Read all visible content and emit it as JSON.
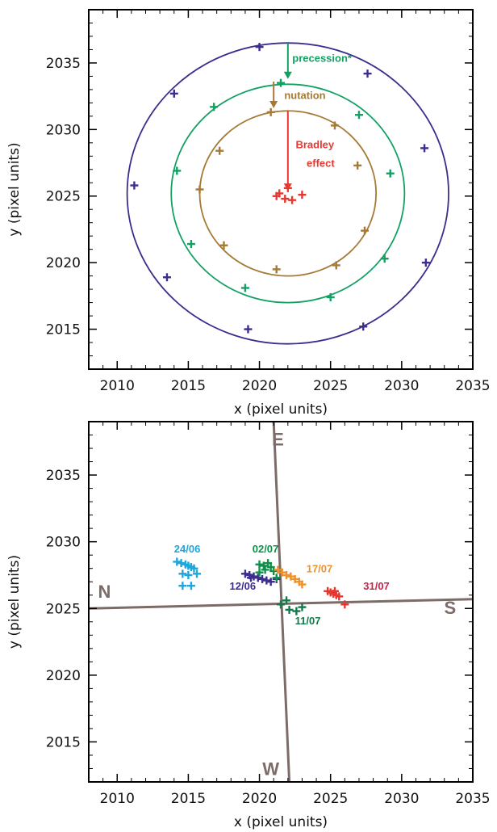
{
  "chart_data": [
    {
      "type": "scatter",
      "xlabel": "x (pixel units)",
      "ylabel": "y (pixel units)",
      "xlim": [
        2008,
        2035
      ],
      "ylim": [
        2012,
        2039
      ],
      "xticks": [
        "2010",
        "2015",
        "2020",
        "2025",
        "2030",
        "2035"
      ],
      "yticks": [
        "2015",
        "2020",
        "2025",
        "2030",
        "2035"
      ],
      "circles": [
        {
          "color": "#3a2e8e",
          "cx": 2022,
          "cy": 2025.2,
          "r": 11.3
        },
        {
          "color": "#12a063",
          "cx": 2022,
          "cy": 2025.2,
          "r": 8.2
        },
        {
          "color": "#a57a35",
          "cx": 2022,
          "cy": 2025.2,
          "r": 6.2
        }
      ],
      "annotations": [
        {
          "text": "precession*",
          "color": "#12a063",
          "x": 2024.4,
          "y": 2035.1
        },
        {
          "text": "nutation",
          "color": "#a57a35",
          "x": 2023.2,
          "y": 2032.3
        },
        {
          "text": "Bradley",
          "color": "#e8372f",
          "x": 2023.9,
          "y": 2028.6
        },
        {
          "text": "effect",
          "color": "#e8372f",
          "x": 2024.3,
          "y": 2027.2
        }
      ],
      "arrows": [
        {
          "color": "#12a063",
          "x": 2022,
          "y_from": 2036.5,
          "y_to": 2033.8
        },
        {
          "color": "#a57a35",
          "x": 2021,
          "y_from": 2033.6,
          "y_to": 2031.6
        },
        {
          "color": "#e8372f",
          "x": 2022,
          "y_from": 2031.4,
          "y_to": 2025.4
        }
      ],
      "series": [
        {
          "color": "#3a2e8e",
          "points": [
            [
              2020,
              2036.2
            ],
            [
              2027.6,
              2034.2
            ],
            [
              2014,
              2032.7
            ],
            [
              2031.6,
              2028.6
            ],
            [
              2011.2,
              2025.8
            ],
            [
              2031.7,
              2020
            ],
            [
              2013.5,
              2018.9
            ],
            [
              2019.2,
              2015
            ],
            [
              2027.3,
              2015.2
            ]
          ]
        },
        {
          "color": "#12a063",
          "points": [
            [
              2021.5,
              2033.5
            ],
            [
              2016.8,
              2031.7
            ],
            [
              2027,
              2031.1
            ],
            [
              2014.2,
              2026.9
            ],
            [
              2029.2,
              2026.7
            ],
            [
              2015.2,
              2021.4
            ],
            [
              2028.8,
              2020.3
            ],
            [
              2019,
              2018.1
            ],
            [
              2025,
              2017.4
            ]
          ]
        },
        {
          "color": "#a57a35",
          "points": [
            [
              2020.8,
              2031.3
            ],
            [
              2025.3,
              2030.3
            ],
            [
              2017.2,
              2028.4
            ],
            [
              2026.9,
              2027.3
            ],
            [
              2015.8,
              2025.5
            ],
            [
              2027.4,
              2022.4
            ],
            [
              2017.5,
              2021.3
            ],
            [
              2025.4,
              2019.8
            ],
            [
              2021.2,
              2019.5
            ]
          ]
        },
        {
          "color": "#e8372f",
          "points": [
            [
              2021.4,
              2025.2
            ],
            [
              2022,
              2025.6
            ],
            [
              2021.8,
              2024.8
            ],
            [
              2022.3,
              2024.7
            ],
            [
              2023,
              2025.1
            ],
            [
              2021.2,
              2025.0
            ]
          ]
        }
      ]
    },
    {
      "type": "scatter",
      "xlabel": "x (pixel units)",
      "ylabel": "y (pixel units)",
      "xlim": [
        2008,
        2035
      ],
      "ylim": [
        2012,
        2039
      ],
      "xticks": [
        "2010",
        "2015",
        "2020",
        "2025",
        "2030",
        "2035"
      ],
      "yticks": [
        "2015",
        "2020",
        "2025",
        "2030",
        "2035"
      ],
      "compass": [
        {
          "text": "E",
          "x": 2021.3,
          "y": 2037.2
        },
        {
          "text": "N",
          "x": 2009.1,
          "y": 2025.8
        },
        {
          "text": "S",
          "x": 2033.4,
          "y": 2024.6
        },
        {
          "text": "W",
          "x": 2020.8,
          "y": 2012.5
        }
      ],
      "lines": [
        {
          "color": "#7d6b68",
          "from": [
            2008,
            2025.0
          ],
          "to": [
            2035,
            2025.7
          ]
        },
        {
          "color": "#7d6b68",
          "from": [
            2021.0,
            2039
          ],
          "to": [
            2022.1,
            2012
          ]
        }
      ],
      "labels": [
        {
          "text": "24/06",
          "color": "#1fa6dc",
          "x": 2014.0,
          "y": 2029.2
        },
        {
          "text": "02/07",
          "color": "#0e8f4a",
          "x": 2019.5,
          "y": 2029.2
        },
        {
          "text": "17/07",
          "color": "#f0922b",
          "x": 2023.3,
          "y": 2027.7
        },
        {
          "text": "12/06",
          "color": "#3a2e8e",
          "x": 2017.9,
          "y": 2026.4
        },
        {
          "text": "31/07",
          "color": "#c8254a",
          "x": 2027.3,
          "y": 2026.4
        },
        {
          "text": "11/07",
          "color": "#127a4a",
          "x": 2022.5,
          "y": 2023.8
        }
      ],
      "series": [
        {
          "name": "24/06",
          "color": "#1fa6dc",
          "points": [
            [
              2014.2,
              2028.5
            ],
            [
              2014.5,
              2028.4
            ],
            [
              2014.8,
              2028.3
            ],
            [
              2015.0,
              2028.2
            ],
            [
              2015.2,
              2028.1
            ],
            [
              2015.4,
              2028.0
            ],
            [
              2014.6,
              2027.6
            ],
            [
              2015.0,
              2027.5
            ],
            [
              2015.6,
              2027.6
            ],
            [
              2014.6,
              2026.7
            ],
            [
              2015.2,
              2026.7
            ]
          ]
        },
        {
          "name": "12/06",
          "color": "#3a2e8e",
          "points": [
            [
              2019.0,
              2027.6
            ],
            [
              2019.3,
              2027.5
            ],
            [
              2019.6,
              2027.4
            ],
            [
              2019.9,
              2027.3
            ],
            [
              2020.2,
              2027.2
            ],
            [
              2020.5,
              2027.1
            ],
            [
              2020.8,
              2027.0
            ],
            [
              2019.4,
              2027.3
            ],
            [
              2021.2,
              2027.2
            ]
          ]
        },
        {
          "name": "02/07",
          "color": "#0e8f4a",
          "points": [
            [
              2020.0,
              2028.3
            ],
            [
              2020.3,
              2028.2
            ],
            [
              2020.6,
              2028.4
            ],
            [
              2020.8,
              2028.1
            ],
            [
              2020.4,
              2027.9
            ],
            [
              2020.0,
              2027.7
            ],
            [
              2021.0,
              2027.8
            ],
            [
              2021.2,
              2027.3
            ]
          ]
        },
        {
          "name": "17/07",
          "color": "#f0922b",
          "points": [
            [
              2021.3,
              2027.9
            ],
            [
              2021.6,
              2027.7
            ],
            [
              2021.9,
              2027.5
            ],
            [
              2022.2,
              2027.4
            ],
            [
              2022.5,
              2027.2
            ],
            [
              2022.8,
              2027.0
            ],
            [
              2023.0,
              2026.8
            ]
          ]
        },
        {
          "name": "31/07",
          "color": "#e8372f",
          "points": [
            [
              2024.8,
              2026.3
            ],
            [
              2025.0,
              2026.2
            ],
            [
              2025.2,
              2026.1
            ],
            [
              2025.4,
              2026.0
            ],
            [
              2025.6,
              2025.9
            ],
            [
              2025.3,
              2026.3
            ],
            [
              2026.0,
              2025.3
            ]
          ]
        },
        {
          "name": "11/07",
          "color": "#127a4a",
          "points": [
            [
              2021.5,
              2025.3
            ],
            [
              2021.9,
              2025.6
            ],
            [
              2022.1,
              2024.9
            ],
            [
              2022.6,
              2024.8
            ],
            [
              2023.0,
              2025.1
            ]
          ]
        }
      ]
    }
  ]
}
